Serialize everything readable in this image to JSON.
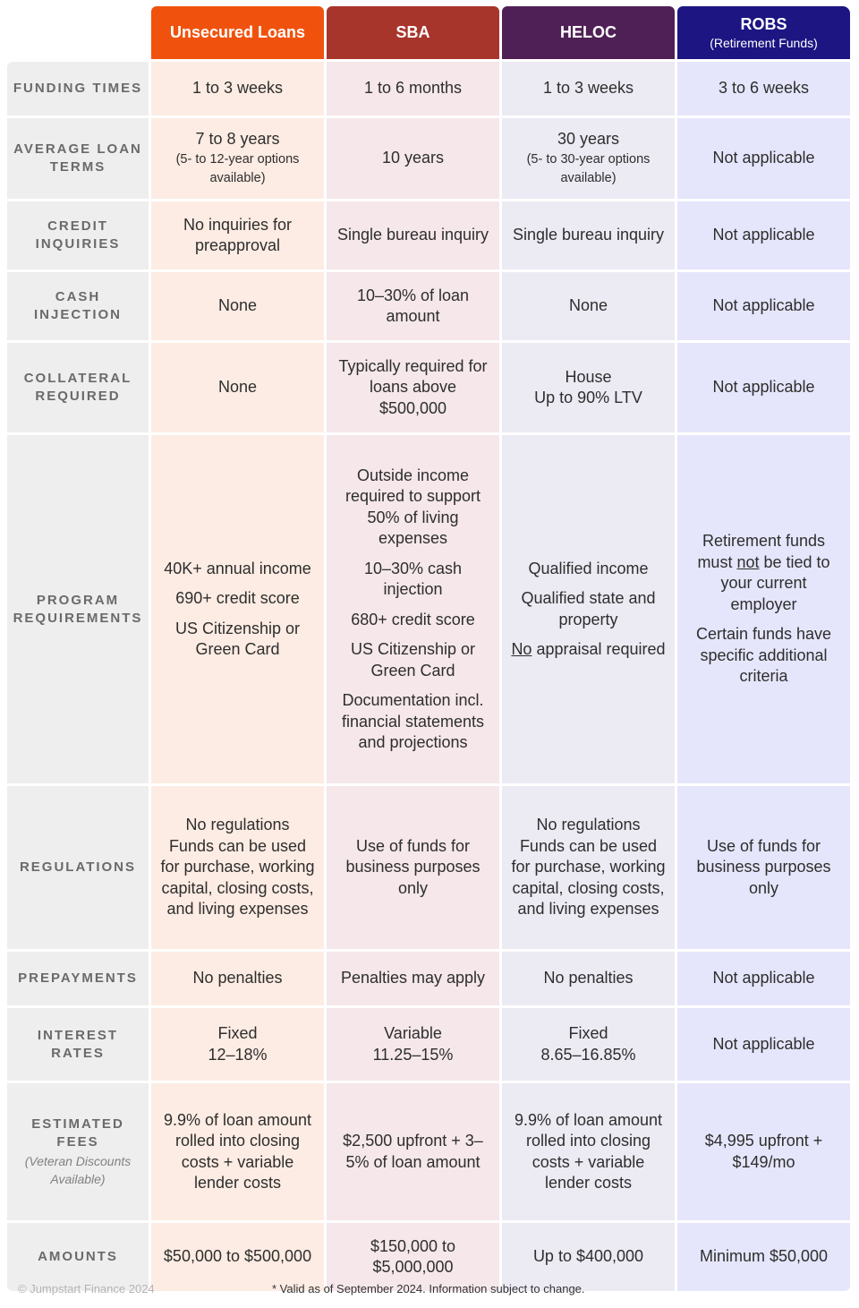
{
  "columns": [
    {
      "title": "Unsecured Loans",
      "subtitle": ""
    },
    {
      "title": "SBA",
      "subtitle": ""
    },
    {
      "title": "HELOC",
      "subtitle": ""
    },
    {
      "title": "ROBS",
      "subtitle": "(Retirement Funds)"
    }
  ],
  "rows": [
    {
      "label": "FUNDING TIMES",
      "cells": [
        "1 to 3 weeks",
        "1 to 6 months",
        "1 to 3 weeks",
        "3 to 6 weeks"
      ]
    },
    {
      "label": "AVERAGE LOAN TERMS",
      "cells": [
        {
          "main": "7 to 8 years",
          "small": "(5- to 12-year options available)"
        },
        "10 years",
        {
          "main": "30 years",
          "small": "(5- to 30-year options available)"
        },
        "Not applicable"
      ]
    },
    {
      "label": "CREDIT INQUIRIES",
      "cells": [
        "No inquiries for preapproval",
        "Single bureau inquiry",
        "Single bureau inquiry",
        "Not applicable"
      ]
    },
    {
      "label": "CASH INJECTION",
      "cells": [
        "None",
        "10–30% of loan amount",
        "None",
        "Not applicable"
      ]
    },
    {
      "label": "COLLATERAL REQUIRED",
      "cells": [
        "None",
        "Typically required for loans above $500,000",
        "House\nUp to 90% LTV",
        "Not applicable"
      ]
    },
    {
      "label": "PROGRAM REQUIREMENTS",
      "cells": [
        [
          "40K+ annual income",
          "690+ credit score",
          "US Citizenship or Green Card"
        ],
        [
          "Outside income required to support 50% of living expenses",
          "10–30% cash injection",
          "680+ credit score",
          "US Citizenship or Green Card",
          "Documentation incl. financial statements and projections"
        ],
        [
          "Qualified income",
          "Qualified state and property",
          "No appraisal required"
        ],
        [
          "Retirement funds must not be tied to your current employer",
          "Certain funds have specific additional criteria"
        ]
      ]
    },
    {
      "label": "REGULATIONS",
      "cells": [
        "No regulations\nFunds can be used for purchase, working capital, closing costs, and living expenses",
        "Use of funds for business purposes only",
        "No regulations\nFunds can be used for purchase, working capital, closing costs, and living expenses",
        "Use of funds for business purposes only"
      ]
    },
    {
      "label": "PREPAYMENTS",
      "cells": [
        "No penalties",
        "Penalties may apply",
        "No penalties",
        "Not applicable"
      ]
    },
    {
      "label": "INTEREST RATES",
      "cells": [
        "Fixed\n12–18%",
        "Variable\n11.25–15%",
        "Fixed\n8.65–16.85%",
        "Not applicable"
      ]
    },
    {
      "label": "ESTIMATED FEES",
      "note": "(Veteran Discounts Available)",
      "cells": [
        "9.9% of loan amount rolled into closing costs + variable lender costs",
        "$2,500 upfront + 3–5% of loan amount",
        "9.9% of loan amount rolled into closing costs + variable lender costs",
        "$4,995 upfront + $149/mo"
      ]
    },
    {
      "label": "AMOUNTS",
      "cells": [
        "$50,000 to $500,000",
        "$150,000 to $5,000,000",
        "Up to $400,000",
        "Minimum $50,000"
      ]
    }
  ],
  "footer": {
    "copyright": "© Jumpstart Finance 2024",
    "disclaimer": "* Valid as of September 2024. Information subject to change."
  },
  "colors": {
    "unsecured": "#f0520e",
    "sba": "#a8352b",
    "heloc": "#4f2056",
    "robs": "#1c1582"
  }
}
